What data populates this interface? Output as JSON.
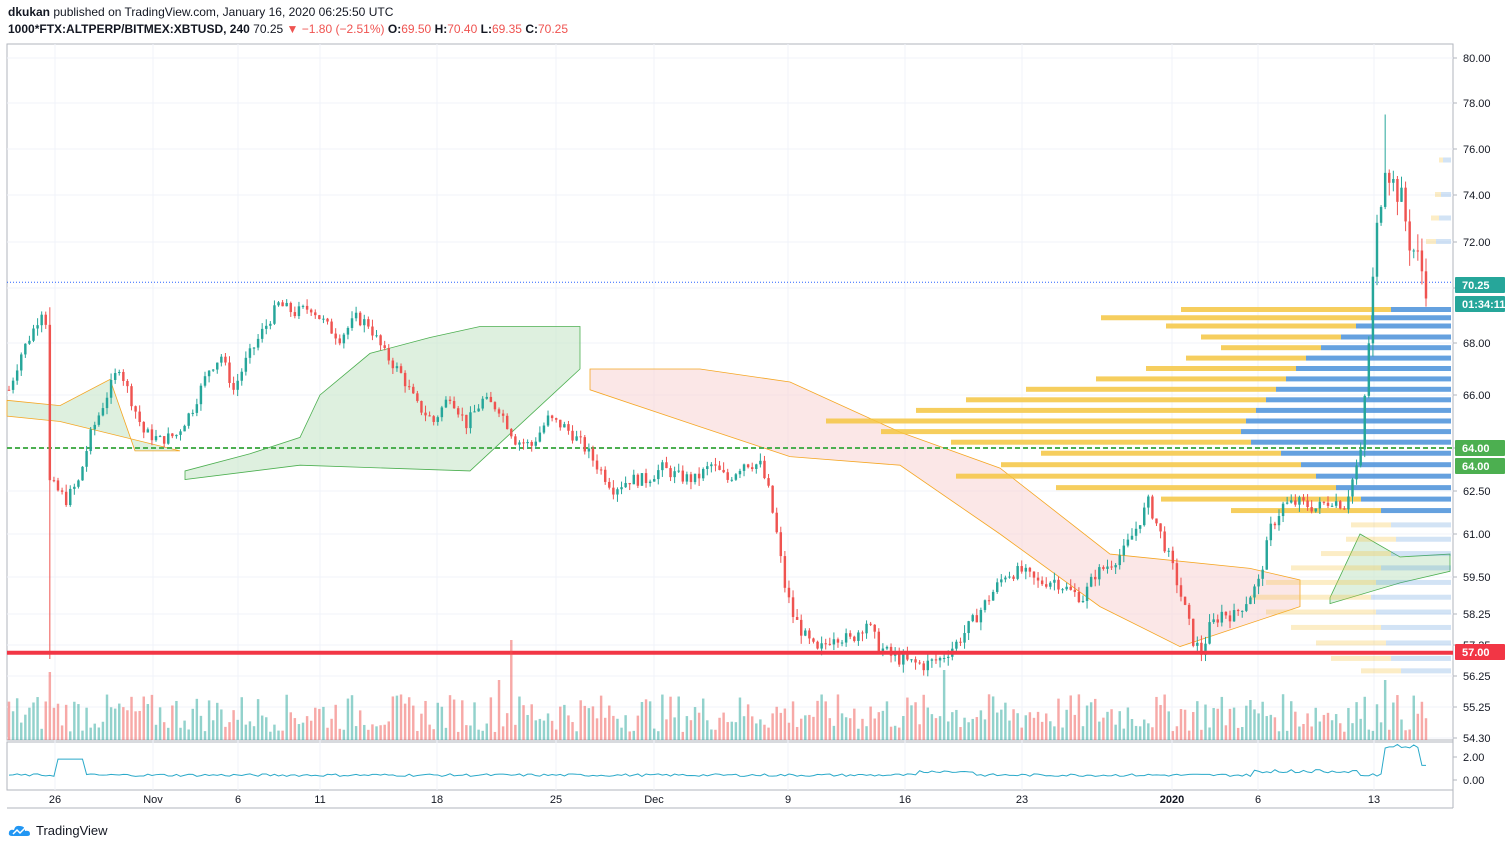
{
  "header": {
    "author": "dkukan",
    "published_text": "published on TradingView.com, January 16, 2020 06:25:50 UTC",
    "symbol": "1000*FTX:ALTPERP/BITMEX:XBTUSD, 240",
    "last": "70.25",
    "change": "−1.80 (−2.51%)",
    "o_label": "O:",
    "o_value": "69.50",
    "h_label": "H:",
    "h_value": "70.40",
    "l_label": "L:",
    "l_value": "69.35",
    "c_label": "C:",
    "c_value": "70.25"
  },
  "footer": {
    "brand": "TradingView",
    "icon": "tradingview-cloud-icon"
  },
  "colors": {
    "up": "#26a69a",
    "down": "#ef5350",
    "green_line": "#4caf50",
    "red_line": "#f23645",
    "vp_blue": "#4a90d9",
    "vp_yellow": "#f5c542",
    "cloud_green": "#c8e6c9",
    "cloud_red": "#f8d7d7",
    "grid": "#f0f3fa",
    "last_price_bg": "#26a69a",
    "indicator": "#2aa9c9"
  },
  "chart_data": {
    "type": "candlestick",
    "title": "",
    "yaxis_ticks": [
      "80.00",
      "78.00",
      "76.00",
      "74.00",
      "72.00",
      "70.00",
      "68.00",
      "66.00",
      "64.00",
      "62.50",
      "61.00",
      "59.50",
      "58.25",
      "57.25",
      "56.25",
      "55.25",
      "54.30"
    ],
    "yaxis_ticks_display": [
      "80.00",
      "78.00",
      "76.00",
      "74.00",
      "72.00",
      "",
      "68.00",
      "66.00",
      "",
      "62.50",
      "61.00",
      "59.50",
      "58.25",
      "57.25",
      "56.25",
      "55.25",
      "54.30"
    ],
    "xaxis_ticks": [
      "26",
      "Nov",
      "6",
      "11",
      "18",
      "25",
      "Dec",
      "9",
      "16",
      "23",
      "2020",
      "6",
      "13"
    ],
    "lower_pane_ticks": [
      "2.00",
      "0.00"
    ],
    "price_labels": {
      "last": "70.25",
      "countdown": "01:34:11",
      "green_level_1": "64.00",
      "green_level_2": "64.00",
      "red_level": "57.00"
    },
    "horizontal_levels": {
      "support_red": 57.0,
      "green_dashed": 64.0,
      "last_dotted": 70.25
    },
    "price_path": [
      {
        "t": 0,
        "p": 66.2
      },
      {
        "t": 3,
        "p": 67.6
      },
      {
        "t": 6,
        "p": 68.5
      },
      {
        "t": 8,
        "p": 69.2
      },
      {
        "t": 9,
        "p": 68.8
      },
      {
        "t": 10,
        "p": 62.8
      },
      {
        "t": 14,
        "p": 62.2
      },
      {
        "t": 17,
        "p": 62.8
      },
      {
        "t": 20,
        "p": 64.5
      },
      {
        "t": 24,
        "p": 66.0
      },
      {
        "t": 27,
        "p": 67.1
      },
      {
        "t": 30,
        "p": 65.8
      },
      {
        "t": 33,
        "p": 64.6
      },
      {
        "t": 37,
        "p": 64.3
      },
      {
        "t": 41,
        "p": 64.5
      },
      {
        "t": 45,
        "p": 65.5
      },
      {
        "t": 49,
        "p": 67.0
      },
      {
        "t": 52,
        "p": 67.5
      },
      {
        "t": 55,
        "p": 66.2
      },
      {
        "t": 58,
        "p": 67.3
      },
      {
        "t": 62,
        "p": 68.4
      },
      {
        "t": 66,
        "p": 69.4
      },
      {
        "t": 70,
        "p": 69.1
      },
      {
        "t": 74,
        "p": 69.3
      },
      {
        "t": 78,
        "p": 68.6
      },
      {
        "t": 81,
        "p": 68.2
      },
      {
        "t": 85,
        "p": 68.9
      },
      {
        "t": 88,
        "p": 68.7
      },
      {
        "t": 92,
        "p": 67.6
      },
      {
        "t": 96,
        "p": 66.8
      },
      {
        "t": 100,
        "p": 65.6
      },
      {
        "t": 104,
        "p": 65.0
      },
      {
        "t": 108,
        "p": 66.0
      },
      {
        "t": 112,
        "p": 64.9
      },
      {
        "t": 116,
        "p": 65.8
      },
      {
        "t": 120,
        "p": 65.5
      },
      {
        "t": 124,
        "p": 64.3
      },
      {
        "t": 128,
        "p": 64.1
      },
      {
        "t": 132,
        "p": 65.1
      },
      {
        "t": 136,
        "p": 64.8
      },
      {
        "t": 140,
        "p": 64.2
      },
      {
        "t": 144,
        "p": 63.4
      },
      {
        "t": 148,
        "p": 62.6
      },
      {
        "t": 152,
        "p": 62.9
      },
      {
        "t": 156,
        "p": 62.9
      },
      {
        "t": 160,
        "p": 63.3
      },
      {
        "t": 164,
        "p": 63.0
      },
      {
        "t": 168,
        "p": 62.9
      },
      {
        "t": 172,
        "p": 63.4
      },
      {
        "t": 176,
        "p": 62.9
      },
      {
        "t": 180,
        "p": 63.5
      },
      {
        "t": 184,
        "p": 63.4
      },
      {
        "t": 186,
        "p": 62.5
      },
      {
        "t": 188,
        "p": 61.0
      },
      {
        "t": 190,
        "p": 59.2
      },
      {
        "t": 192,
        "p": 58.2
      },
      {
        "t": 195,
        "p": 57.5
      },
      {
        "t": 198,
        "p": 57.0
      },
      {
        "t": 202,
        "p": 57.6
      },
      {
        "t": 206,
        "p": 57.4
      },
      {
        "t": 210,
        "p": 58.0
      },
      {
        "t": 213,
        "p": 57.2
      },
      {
        "t": 216,
        "p": 56.9
      },
      {
        "t": 220,
        "p": 56.7
      },
      {
        "t": 224,
        "p": 56.6
      },
      {
        "t": 228,
        "p": 56.8
      },
      {
        "t": 232,
        "p": 57.3
      },
      {
        "t": 236,
        "p": 58.0
      },
      {
        "t": 240,
        "p": 58.8
      },
      {
        "t": 244,
        "p": 59.6
      },
      {
        "t": 248,
        "p": 59.7
      },
      {
        "t": 252,
        "p": 59.3
      },
      {
        "t": 256,
        "p": 59.4
      },
      {
        "t": 260,
        "p": 59.0
      },
      {
        "t": 263,
        "p": 58.8
      },
      {
        "t": 266,
        "p": 59.6
      },
      {
        "t": 270,
        "p": 60.0
      },
      {
        "t": 273,
        "p": 60.4
      },
      {
        "t": 276,
        "p": 61.2
      },
      {
        "t": 279,
        "p": 62.1
      },
      {
        "t": 282,
        "p": 61.0
      },
      {
        "t": 285,
        "p": 59.8
      },
      {
        "t": 288,
        "p": 58.4
      },
      {
        "t": 290,
        "p": 57.4
      },
      {
        "t": 292,
        "p": 57.0
      },
      {
        "t": 294,
        "p": 57.8
      },
      {
        "t": 297,
        "p": 58.3
      },
      {
        "t": 300,
        "p": 58.2
      },
      {
        "t": 303,
        "p": 58.7
      },
      {
        "t": 306,
        "p": 59.3
      },
      {
        "t": 309,
        "p": 61.2
      },
      {
        "t": 312,
        "p": 62.0
      },
      {
        "t": 316,
        "p": 62.1
      },
      {
        "t": 320,
        "p": 61.9
      },
      {
        "t": 324,
        "p": 62.2
      },
      {
        "t": 327,
        "p": 62.0
      },
      {
        "t": 329,
        "p": 62.9
      },
      {
        "t": 331,
        "p": 63.8
      },
      {
        "t": 333,
        "p": 68.0
      },
      {
        "t": 335,
        "p": 72.5
      },
      {
        "t": 337,
        "p": 75.5
      },
      {
        "t": 339,
        "p": 74.5
      },
      {
        "t": 341,
        "p": 73.8
      },
      {
        "t": 343,
        "p": 72.0
      },
      {
        "t": 345,
        "p": 71.3
      },
      {
        "t": 347,
        "p": 70.2
      }
    ]
  }
}
